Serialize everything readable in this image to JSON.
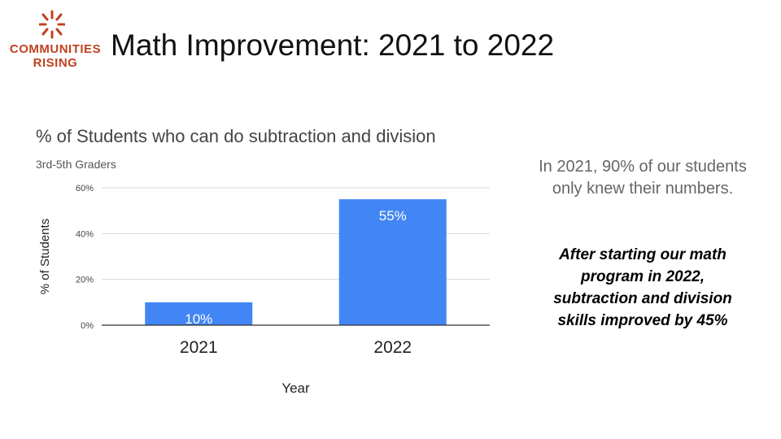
{
  "brand": {
    "line1": "COMMUNITIES",
    "line2": "RISING",
    "color": "#c1411f"
  },
  "slide_title": "Math Improvement: 2021 to 2022",
  "chart_data": {
    "type": "bar",
    "title": "% of Students who can do subtraction and division",
    "subtitle": "3rd-5th Graders",
    "categories": [
      "2021",
      "2022"
    ],
    "values": [
      10,
      55
    ],
    "value_labels": [
      "10%",
      "55%"
    ],
    "xlabel": "Year",
    "ylabel": "% of Students",
    "ylim": [
      0,
      60
    ],
    "yticks": [
      0,
      20,
      40,
      60
    ],
    "ytick_labels": [
      "0%",
      "20%",
      "40%",
      "60%"
    ],
    "grid": true,
    "bar_color": "#4285f4",
    "legend": "none"
  },
  "side_panel": {
    "note": "In 2021, 90% of our students only knew their numbers.",
    "highlight": "After starting our math program in 2022, subtraction and division skills improved by 45%"
  }
}
